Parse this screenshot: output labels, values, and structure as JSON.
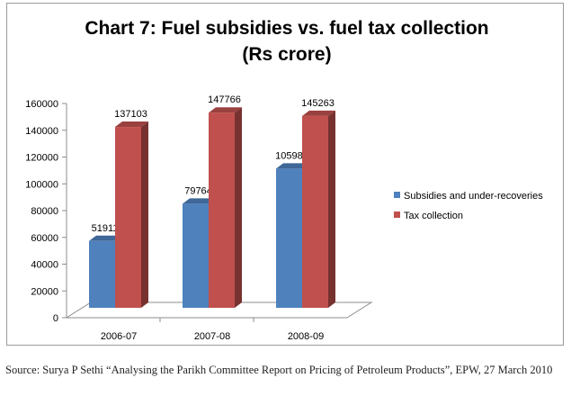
{
  "chart_data": {
    "type": "bar",
    "title_line1": "Chart 7: Fuel subsidies vs. fuel tax collection",
    "title_line2": "(Rs crore)",
    "categories": [
      "2006-07",
      "2007-08",
      "2008-09"
    ],
    "series": [
      {
        "name": "Subsidies and under-recoveries",
        "values": [
          51911,
          79764,
          105980
        ],
        "color": "#4f81bd"
      },
      {
        "name": "Tax collection",
        "values": [
          137103,
          147766,
          145263
        ],
        "color": "#c0504d"
      }
    ],
    "yticks": [
      "0",
      "20000",
      "40000",
      "60000",
      "80000",
      "100000",
      "120000",
      "140000",
      "160000"
    ],
    "ylim": [
      0,
      160000
    ],
    "grid": false,
    "legend": "right",
    "three_d": true
  },
  "source": "Source: Surya P Sethi “Analysing the Parikh Committee Report on Pricing of Petroleum Products”, EPW, 27 March 2010"
}
